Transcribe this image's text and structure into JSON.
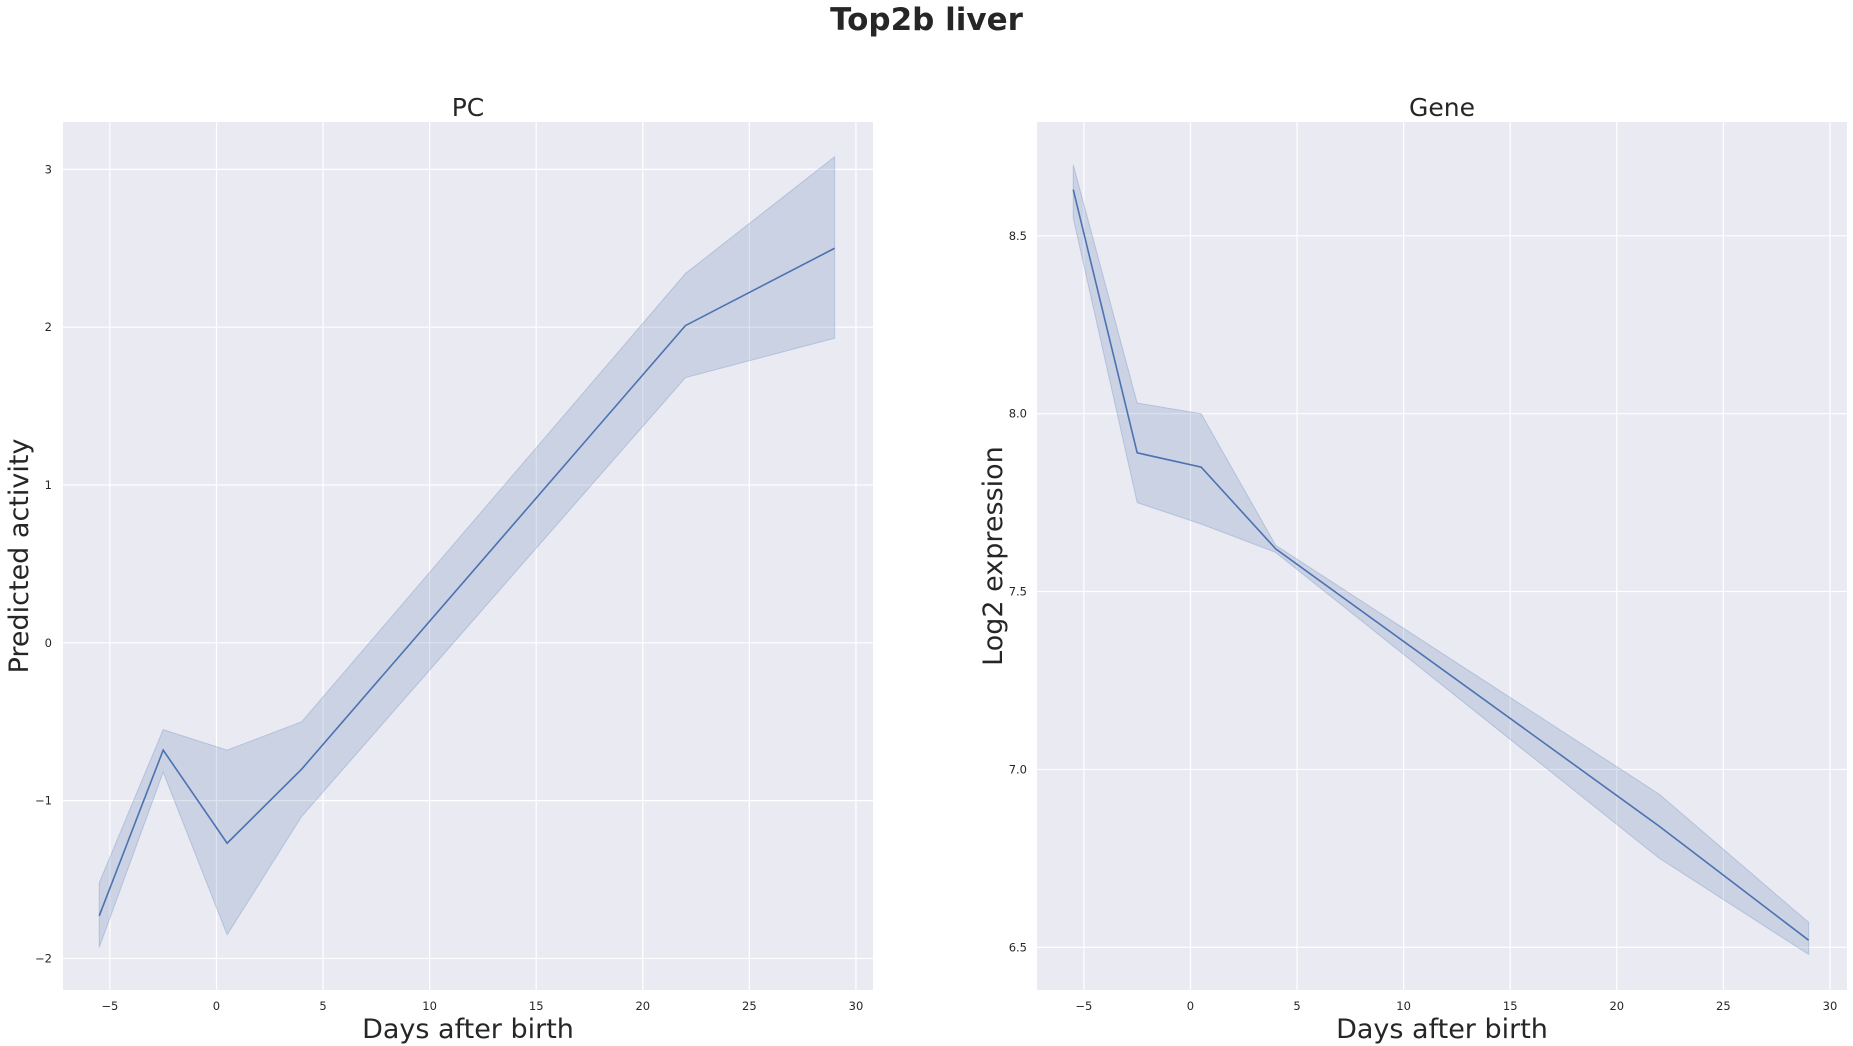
{
  "figure": {
    "title": "Top2b liver"
  },
  "colors": {
    "background": "#eaeaf2",
    "grid": "#ffffff",
    "line": "#4c72b0",
    "band": "#4c72b0"
  },
  "chart_data": [
    {
      "type": "line",
      "title": "PC",
      "xlabel": "Days after birth",
      "ylabel": "Predicted activity",
      "xlim": [
        -7.2,
        30.8
      ],
      "ylim": [
        -2.2,
        3.3
      ],
      "xticks": [
        -5,
        0,
        5,
        10,
        15,
        20,
        25,
        30
      ],
      "xtick_labels": [
        "−5",
        "0",
        "5",
        "10",
        "15",
        "20",
        "25",
        "30"
      ],
      "yticks": [
        -2,
        -1,
        0,
        1,
        2,
        3
      ],
      "ytick_labels": [
        "−2",
        "−1",
        "0",
        "1",
        "2",
        "3"
      ],
      "grid": true,
      "series": [
        {
          "x": [
            -5.5,
            -2.5,
            0.5,
            4,
            22,
            29
          ],
          "y": [
            -1.73,
            -0.68,
            -1.27,
            -0.8,
            2.01,
            2.5
          ],
          "ci_low": [
            -1.93,
            -0.82,
            -1.85,
            -1.1,
            1.68,
            1.93
          ],
          "ci_high": [
            -1.52,
            -0.55,
            -0.68,
            -0.5,
            2.34,
            3.08
          ]
        }
      ]
    },
    {
      "type": "line",
      "title": "Gene",
      "xlabel": "Days after birth",
      "ylabel": "Log2 expression",
      "xlim": [
        -7.2,
        30.8
      ],
      "ylim": [
        6.38,
        8.82
      ],
      "xticks": [
        -5,
        0,
        5,
        10,
        15,
        20,
        25,
        30
      ],
      "xtick_labels": [
        "−5",
        "0",
        "5",
        "10",
        "15",
        "20",
        "25",
        "30"
      ],
      "yticks": [
        6.5,
        7.0,
        7.5,
        8.0,
        8.5
      ],
      "ytick_labels": [
        "6.5",
        "7.0",
        "7.5",
        "8.0",
        "8.5"
      ],
      "grid": true,
      "series": [
        {
          "x": [
            -5.5,
            -2.5,
            0.5,
            4,
            22,
            29
          ],
          "y": [
            8.63,
            7.89,
            7.85,
            7.62,
            6.84,
            6.52
          ],
          "ci_low": [
            8.55,
            7.75,
            7.69,
            7.61,
            6.75,
            6.48
          ],
          "ci_high": [
            8.7,
            8.03,
            8.0,
            7.63,
            6.93,
            6.57
          ]
        }
      ]
    }
  ]
}
